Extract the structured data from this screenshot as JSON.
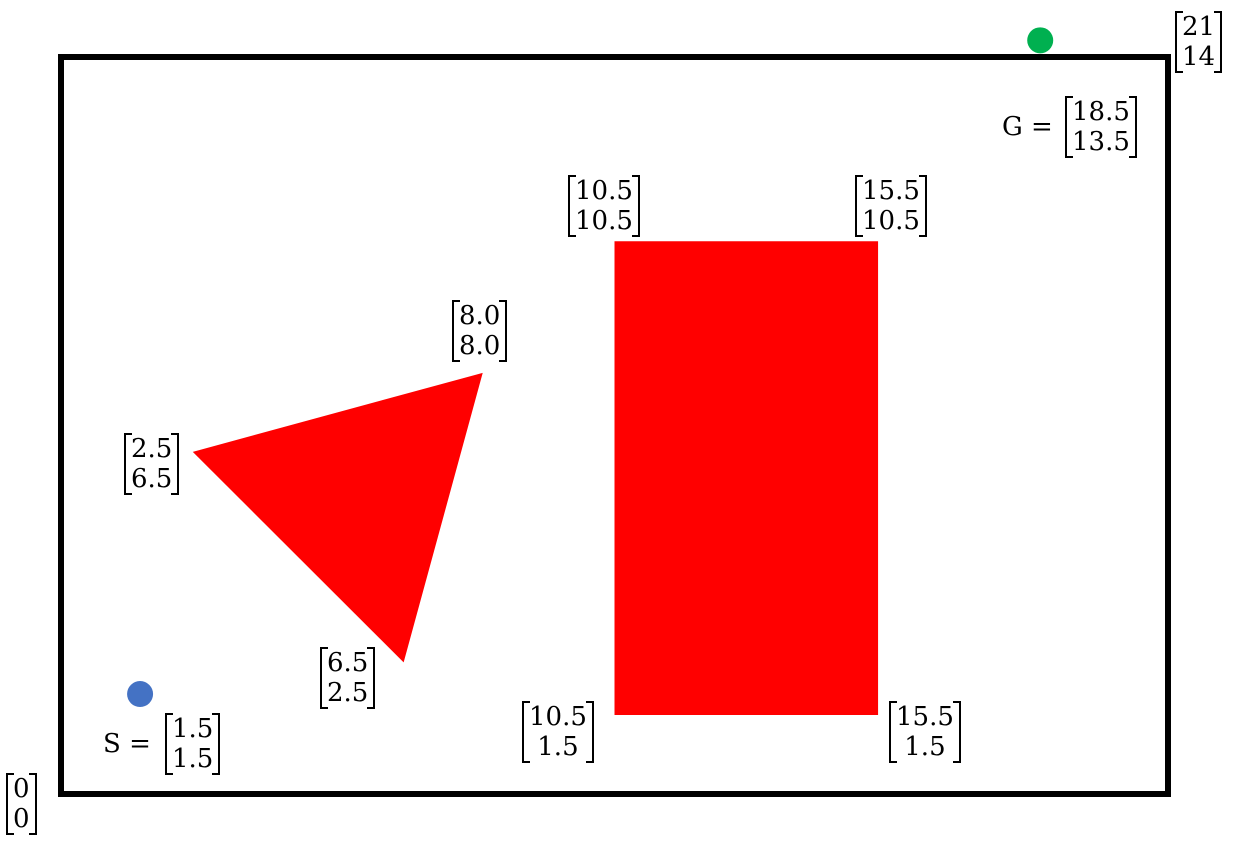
{
  "world": {
    "xmax": 21,
    "ymax": 14
  },
  "colors": {
    "obstacle": "#ff0000",
    "start": "#4472c4",
    "goal": "#00b050",
    "border": "#000000"
  },
  "corner_labels": {
    "origin": [
      "0",
      "0"
    ],
    "top_right": [
      "21",
      "14"
    ]
  },
  "start": {
    "name": "S",
    "equals": "=",
    "x": 1.5,
    "y": 1.5,
    "vec": [
      "1.5",
      "1.5"
    ]
  },
  "goal": {
    "name": "G",
    "equals": "=",
    "x": 18.5,
    "y": 13.5,
    "vec": [
      "18.5",
      "13.5"
    ]
  },
  "triangle": {
    "vertices": [
      {
        "x": 2.5,
        "y": 6.5,
        "vec": [
          "2.5",
          "6.5"
        ]
      },
      {
        "x": 8.0,
        "y": 8.0,
        "vec": [
          "8.0",
          "8.0"
        ]
      },
      {
        "x": 6.5,
        "y": 2.5,
        "vec": [
          "6.5",
          "2.5"
        ]
      }
    ]
  },
  "rectangle": {
    "vertices": [
      {
        "x": 10.5,
        "y": 10.5,
        "vec": [
          "10.5",
          "10.5"
        ]
      },
      {
        "x": 15.5,
        "y": 10.5,
        "vec": [
          "15.5",
          "10.5"
        ]
      },
      {
        "x": 15.5,
        "y": 1.5,
        "vec": [
          "15.5",
          "1.5"
        ]
      },
      {
        "x": 10.5,
        "y": 1.5,
        "vec": [
          "10.5",
          "1.5"
        ]
      }
    ]
  }
}
